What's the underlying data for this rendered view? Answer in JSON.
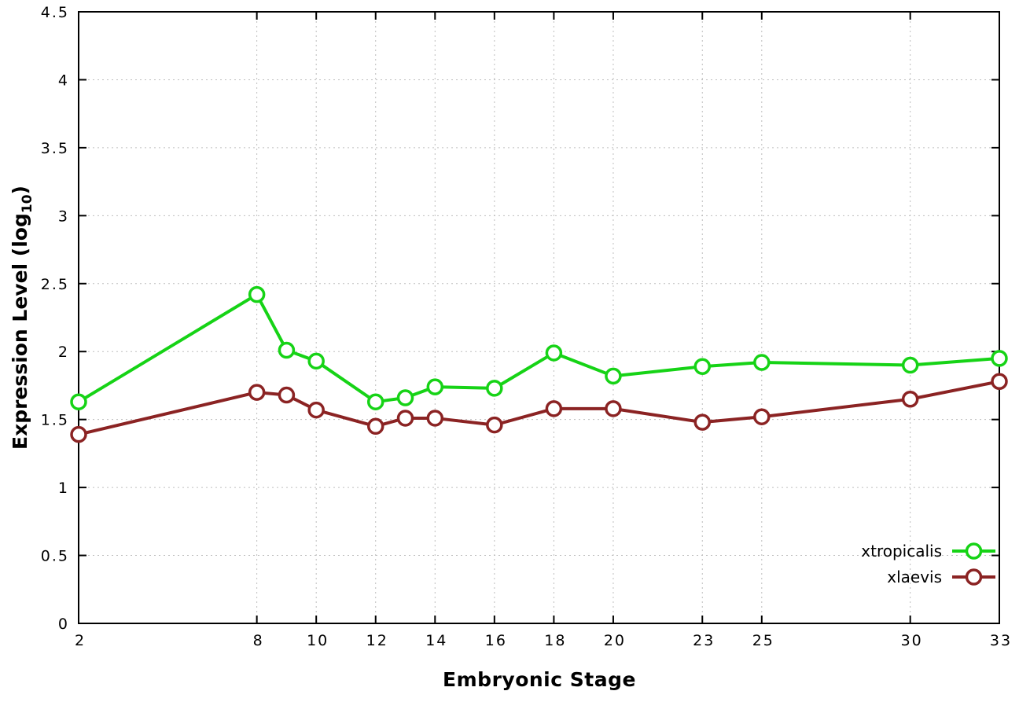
{
  "chart_data": {
    "type": "line",
    "title": "",
    "xlabel": "Embryonic Stage",
    "ylabel": {
      "pre": "Expression Level (log",
      "sub": "10",
      "post": ")"
    },
    "xlim": [
      2,
      33
    ],
    "ylim": [
      0,
      4.5
    ],
    "grid": true,
    "legend_position": "bottom-right",
    "x_ticks": [
      2,
      8,
      10,
      12,
      14,
      16,
      18,
      20,
      23,
      25,
      30,
      33
    ],
    "x_tick_labels": [
      "2",
      "8",
      "10",
      "12",
      "14",
      "16",
      "18",
      "20",
      "23",
      "25",
      "30",
      "33"
    ],
    "y_ticks": [
      0,
      0.5,
      1,
      1.5,
      2,
      2.5,
      3,
      3.5,
      4,
      4.5
    ],
    "y_tick_labels": [
      "0",
      "0.5",
      "1",
      "1.5",
      "2",
      "2.5",
      "3",
      "3.5",
      "4",
      "4.5"
    ],
    "x": [
      2,
      8,
      9,
      10,
      12,
      13,
      14,
      16,
      18,
      20,
      23,
      25,
      30,
      33
    ],
    "series": [
      {
        "name": "xtropicalis",
        "color": "#16d316",
        "values": [
          1.63,
          2.42,
          2.01,
          1.93,
          1.63,
          1.66,
          1.74,
          1.73,
          1.99,
          1.82,
          1.89,
          1.92,
          1.9,
          1.95
        ]
      },
      {
        "name": "xlaevis",
        "color": "#8b2323",
        "values": [
          1.39,
          1.7,
          1.68,
          1.57,
          1.45,
          1.51,
          1.51,
          1.46,
          1.58,
          1.58,
          1.48,
          1.52,
          1.65,
          1.78
        ]
      }
    ],
    "colors": {
      "grid": "#bdbdbd",
      "axis": "#000000",
      "background": "#ffffff"
    }
  }
}
